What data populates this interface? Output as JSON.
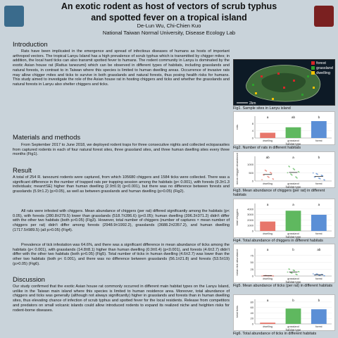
{
  "header": {
    "title_line1": "An exotic rodent as host of vectors of scrub typhus",
    "title_line2": "and spotted fever on a tropical island",
    "authors": "De-Lun Wu, Chi-Chien Kuo",
    "affiliation": "National Taiwan Normal University, Disease Ecology Lab"
  },
  "sections": {
    "intro_title": "Introduction",
    "intro_text": "Rats have been implicated in the emergence and spread of infectious diseases of humans as hosts of important arthropod vectors. The tropical Lanyu Island has a high prevalence of scrub typhus which is transmitted by chigger mites; in addition, the local hard ticks can also transmit spotted fever to humans. The rodent community in Lanyu is dominated by the exotic Asian house rat (Rattus tanezumi) which can be observed in different types of habitats, including grasslands and natural forests, in contrast to in Taiwan where this species is limited to human dwelling areas. Occurrence of invasive rats may allow chigger mites and ticks to survive in both grasslands and natural forests, thus posing health risks for humans. This study aimed to investigate the role of the Asian house rat in hosting chiggers and ticks and whether the grasslands and natural forests in Lanyu also shelter chiggers and ticks.",
    "methods_title": "Materials and methods",
    "methods_text": "From September 2017 to June 2018, we deployed rodent traps for three consecutive nights and collected ectoparasites from captured rodents in each of four natural forest sites, three grassland sites, and three human dwelling sites every three months (Fig1).",
    "result_title": "Result",
    "result_p1": "A total of 254 R. tanezumi rodents were captured, from which 105680 chiggers and 1584 ticks were collected. There was a significant difference in the number of trapped rats per trapping session among the habitats (p< 0.001), with forests (9.3±1.3 individuals; mean±SE) higher than human dwelling (2.9±0.9) (p<0.001), but there was no difference between forests and grasslands (5.9±1.2) (p>0.05), as well as between grasslands and human dwelling (p>0.05) (Fig2).",
    "result_p2": "All rats were infested with chiggers. Mean abundance of chiggers (per rat) differed significantly among the habitats (p< 0.05), with forests (280.8±279.5) lower than grasslands (518.7±286.6) (p<0.05); human dwelling (396.3±371.2) didn't differ with the other two habitats (both p>0.05) (Fig3). However, total number of chiggers (number of captures × mean number of chiggers per rat) didn't differ among forests (2948.9±1992.2), grasslands (3688.2±2357.2), and human dwelling (1717.5±989.5) (all p>0.05) (Fig4).",
    "result_p3": "Prevalence of tick infestation was 64.6%, and there was a significant difference in mean abundance of ticks among the habitats (p< 0.001), with grasslands (14.8±8.1) higher than human dwelling (0.9±0.4) (p<0.001), and forests (4.6±2.7) didn't differ with the other two habitats (both p>0.05) (Fig5). Total number of ticks in human dwelling (4.6±2.7) was lower than the other two habitats (both p< 0.001), and there was no difference between grasslands (56.1±21.8) and forests (53.5±19) (p>0.05) (Fig6).",
    "discussion_title": "Discussion",
    "discussion_text": "Our study confirmed that the exotic Asian house rat commonly occurred in different main habitat types on the Lanyu Island, unlike in the Taiwan main island where this species is limited to human residence area. Moreover, total abundance of chiggers and ticks was generally (although not always significantly) higher in grasslands and forests than in human dwelling sites, thus elevating chance of infection of scrub typhus and spotted fever for the local residents. Release from competitors and predators on small volcanic islands could allow introduced rodents to expand its realized niche and heighten risks for rodent-borne diseases."
  },
  "legend": {
    "items": [
      {
        "label": "forest",
        "color": "#d62728"
      },
      {
        "label": "grassland",
        "color": "#2ca02c"
      },
      {
        "label": "dwelling",
        "color": "#f2c200"
      }
    ],
    "scale": "2km"
  },
  "captions": {
    "fig1": "Fig1. Sample sites in Lanyu island",
    "fig2": "Fig2. Number of rats in different habitats",
    "fig3": "Fig3. Mean abundance of chiggers (per rat) in different habitats",
    "fig4": "Fig4. Total abundance of chiggers in different habitats",
    "fig5": "Fig5. Mean abundance of ticks (per rat) in different habitats",
    "fig6": "Fig6. Total abundance of ticks in different habitats"
  },
  "chart_data": [
    {
      "type": "bar",
      "categories": [
        "dwelling",
        "grassland",
        "forest"
      ],
      "values": [
        2.9,
        5.9,
        9.3
      ],
      "letters": [
        "a",
        "ab",
        "b"
      ],
      "ylabel": "rats",
      "xlabel": "habitat type",
      "ylim": [
        0,
        12
      ],
      "colors": [
        "#e7766b",
        "#5fb85f",
        "#5b8fd6"
      ],
      "ticks": [
        0,
        4,
        8
      ]
    },
    {
      "type": "scatter",
      "categories": [
        "dwelling",
        "grassland",
        "forest"
      ],
      "values": [
        396.3,
        518.7,
        280.8
      ],
      "letters": [
        "ab",
        "a",
        "b"
      ],
      "ylabel": "mean chigger abundance",
      "xlabel": "habitat type",
      "ylim": [
        0,
        1500
      ],
      "colors": [
        "#e7766b",
        "#5fb85f",
        "#5b8fd6"
      ],
      "ticks": [
        0,
        500,
        1000
      ]
    },
    {
      "type": "bar",
      "categories": [
        "dwelling",
        "grassland",
        "forest"
      ],
      "values": [
        1717.5,
        3688.2,
        2948.9
      ],
      "letters": [
        "a",
        "a",
        "a"
      ],
      "ylabel": "total chiggers",
      "xlabel": "habitat type",
      "ylim": [
        0,
        5000
      ],
      "colors": [
        "#e7766b",
        "#5fb85f",
        "#5b8fd6"
      ],
      "ticks": [
        0,
        1000,
        2000,
        3000,
        4000
      ]
    },
    {
      "type": "scatter",
      "categories": [
        "dwelling",
        "grassland",
        "forest"
      ],
      "values": [
        0.9,
        14.8,
        4.6
      ],
      "letters": [
        "a",
        "b",
        "ab"
      ],
      "ylabel": "mean tick abundance",
      "xlabel": "habitat type",
      "ylim": [
        0,
        100
      ],
      "colors": [
        "#e7766b",
        "#5fb85f",
        "#5b8fd6"
      ],
      "ticks": [
        0,
        25,
        50,
        75
      ]
    },
    {
      "type": "bar",
      "categories": [
        "dwelling",
        "grassland",
        "forest"
      ],
      "values": [
        4.6,
        56.1,
        53.5
      ],
      "letters": [
        "a",
        "b",
        "b"
      ],
      "ylabel": "total ticks",
      "xlabel": "habitat type",
      "ylim": [
        0,
        90
      ],
      "colors": [
        "#e7766b",
        "#5fb85f",
        "#5b8fd6"
      ],
      "ticks": [
        0,
        20,
        40,
        60,
        80
      ]
    }
  ]
}
